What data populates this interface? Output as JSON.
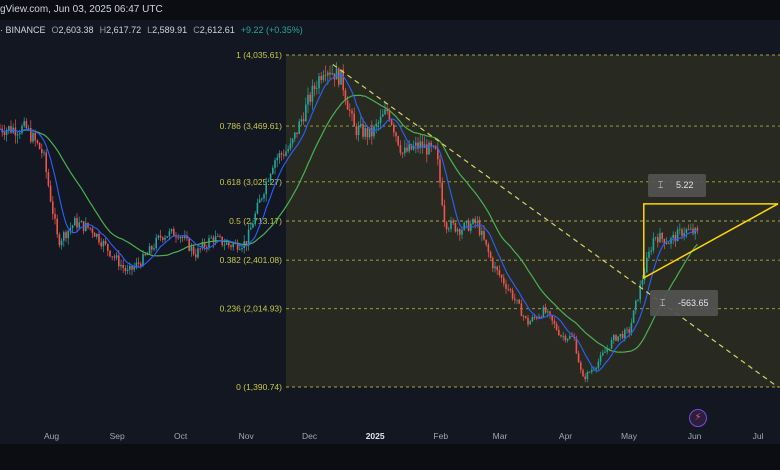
{
  "header": {
    "watermark_text": "gView.com, Jun 03, 2025 06:47 UTC",
    "exchange": "· BINANCE",
    "o_label": "O",
    "o_value": "2,603.38",
    "h_label": "H",
    "h_value": "2,617.72",
    "l_label": "L",
    "l_value": "2,589.91",
    "c_label": "C",
    "c_value": "2,612.61",
    "change": "+9.22 (+0.35%)"
  },
  "colors": {
    "background": "#131722",
    "up_candle": "#26a69a",
    "down_candle": "#ef5350",
    "ma_fast": "#2962ff",
    "ma_slow": "#4caf50",
    "fib_line": "#c8c84a",
    "fib_zone": "#3a3b22",
    "triangle": "#ffd600",
    "trendline": "#d4d36a"
  },
  "icons": {
    "range_icon": "measure-range-icon",
    "bolt_icon": "lightning-icon"
  },
  "chart_data": {
    "type": "candlestick",
    "x_ticks": [
      "Aug",
      "Sep",
      "Oct",
      "Nov",
      "Dec",
      "2025",
      "Feb",
      "Mar",
      "Apr",
      "May",
      "Jun",
      "Jul"
    ],
    "fib_levels": [
      {
        "ratio_label": "1 (4,035.61)",
        "price": 4035.61
      },
      {
        "ratio_label": "0.786 (3,469.61)",
        "price": 3469.61
      },
      {
        "ratio_label": "0.618 (3,025.27)",
        "price": 3025.27
      },
      {
        "ratio_label": "0.5 (2,713.17)",
        "price": 2713.17
      },
      {
        "ratio_label": "0.382 (2,401.08)",
        "price": 2401.08
      },
      {
        "ratio_label": "0.236 (2,014.93)",
        "price": 2014.93
      },
      {
        "ratio_label": "0 (1,390.74)",
        "price": 1390.74
      }
    ],
    "annotations": [
      {
        "label": "5.22"
      },
      {
        "label": "-563.65"
      }
    ],
    "price_path": [
      {
        "date": "2024-07-20",
        "price": 3450
      },
      {
        "date": "2024-07-28",
        "price": 3250
      },
      {
        "date": "2024-08-04",
        "price": 2550
      },
      {
        "date": "2024-08-12",
        "price": 2700
      },
      {
        "date": "2024-08-20",
        "price": 2650
      },
      {
        "date": "2024-08-28",
        "price": 2480
      },
      {
        "date": "2024-09-06",
        "price": 2300
      },
      {
        "date": "2024-09-14",
        "price": 2420
      },
      {
        "date": "2024-09-22",
        "price": 2600
      },
      {
        "date": "2024-09-30",
        "price": 2620
      },
      {
        "date": "2024-10-08",
        "price": 2450
      },
      {
        "date": "2024-10-16",
        "price": 2580
      },
      {
        "date": "2024-10-24",
        "price": 2520
      },
      {
        "date": "2024-11-01",
        "price": 2540
      },
      {
        "date": "2024-11-08",
        "price": 2900
      },
      {
        "date": "2024-11-14",
        "price": 3200
      },
      {
        "date": "2024-11-22",
        "price": 3300
      },
      {
        "date": "2024-11-30",
        "price": 3650
      },
      {
        "date": "2024-12-08",
        "price": 3950
      },
      {
        "date": "2024-12-16",
        "price": 3850
      },
      {
        "date": "2024-12-22",
        "price": 3450
      },
      {
        "date": "2024-12-30",
        "price": 3400
      },
      {
        "date": "2025-01-07",
        "price": 3600
      },
      {
        "date": "2025-01-14",
        "price": 3250
      },
      {
        "date": "2025-01-22",
        "price": 3320
      },
      {
        "date": "2025-01-30",
        "price": 3250
      },
      {
        "date": "2025-02-03",
        "price": 2700
      },
      {
        "date": "2025-02-10",
        "price": 2650
      },
      {
        "date": "2025-02-18",
        "price": 2700
      },
      {
        "date": "2025-02-26",
        "price": 2350
      },
      {
        "date": "2025-03-06",
        "price": 2150
      },
      {
        "date": "2025-03-14",
        "price": 1900
      },
      {
        "date": "2025-03-22",
        "price": 2000
      },
      {
        "date": "2025-03-30",
        "price": 1800
      },
      {
        "date": "2025-04-05",
        "price": 1780
      },
      {
        "date": "2025-04-09",
        "price": 1450
      },
      {
        "date": "2025-04-16",
        "price": 1580
      },
      {
        "date": "2025-04-24",
        "price": 1780
      },
      {
        "date": "2025-05-01",
        "price": 1830
      },
      {
        "date": "2025-05-08",
        "price": 2300
      },
      {
        "date": "2025-05-13",
        "price": 2600
      },
      {
        "date": "2025-05-20",
        "price": 2550
      },
      {
        "date": "2025-05-27",
        "price": 2640
      },
      {
        "date": "2025-06-03",
        "price": 2612
      }
    ]
  }
}
